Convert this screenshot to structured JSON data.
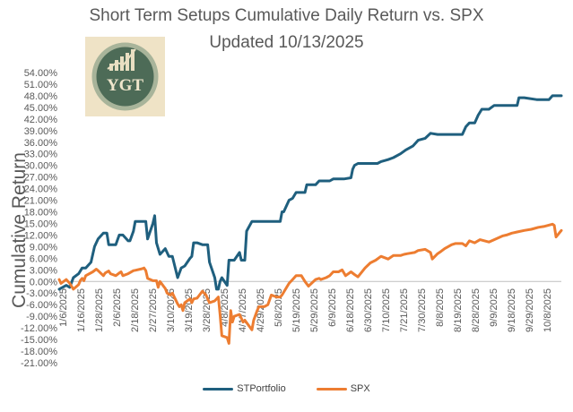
{
  "chart_data": {
    "type": "line",
    "title": "Short Term Setups Cumulative Daily Return vs. SPX",
    "subtitle": "Updated 10/13/2025",
    "xlabel": "",
    "ylabel": "Cumulative Return",
    "logo_text": "YGT",
    "ylim": [
      -21,
      54
    ],
    "y_ticks": [
      "54.00%",
      "51.00%",
      "48.00%",
      "45.00%",
      "42.00%",
      "39.00%",
      "36.00%",
      "33.00%",
      "30.00%",
      "27.00%",
      "24.00%",
      "21.00%",
      "18.00%",
      "15.00%",
      "12.00%",
      "9.00%",
      "6.00%",
      "3.00%",
      "0.00%",
      "-3.00%",
      "-6.00%",
      "-9.00%",
      "-12.00%",
      "-15.00%",
      "-18.00%",
      "-21.00%"
    ],
    "x_ticks": [
      "1/6/2025",
      "1/16/2025",
      "1/28/2025",
      "2/6/2025",
      "2/18/2025",
      "2/27/2025",
      "3/10/2025",
      "3/19/2025",
      "3/28/2025",
      "4/8/2025",
      "4/17/2025",
      "4/29/2025",
      "5/8/2025",
      "5/19/2025",
      "5/29/2025",
      "6/9/2025",
      "6/18/2025",
      "6/30/2025",
      "7/10/2025",
      "7/21/2025",
      "7/30/2025",
      "8/8/2025",
      "8/19/2025",
      "8/28/2025",
      "9/9/2025",
      "9/18/2025",
      "9/29/2025",
      "10/8/2025"
    ],
    "x_start": "2025-01-02",
    "x_end": "2025-10-13",
    "grid": false,
    "legend_position": "bottom",
    "series": [
      {
        "name": "STPortfolio",
        "color": "#1f5f7e",
        "points": [
          [
            "2025-01-02",
            -2
          ],
          [
            "2025-01-06",
            -1
          ],
          [
            "2025-01-08",
            -1.5
          ],
          [
            "2025-01-10",
            1
          ],
          [
            "2025-01-13",
            2
          ],
          [
            "2025-01-15",
            3.5
          ],
          [
            "2025-01-17",
            3.5
          ],
          [
            "2025-01-20",
            5
          ],
          [
            "2025-01-22",
            9
          ],
          [
            "2025-01-24",
            11
          ],
          [
            "2025-01-27",
            12.5
          ],
          [
            "2025-01-29",
            12.5
          ],
          [
            "2025-01-30",
            9.5
          ],
          [
            "2025-02-03",
            9.5
          ],
          [
            "2025-02-05",
            12
          ],
          [
            "2025-02-07",
            12
          ],
          [
            "2025-02-10",
            10.5
          ],
          [
            "2025-02-11",
            10.5
          ],
          [
            "2025-02-13",
            13
          ],
          [
            "2025-02-14",
            15.5
          ],
          [
            "2025-02-18",
            15.5
          ],
          [
            "2025-02-20",
            15.5
          ],
          [
            "2025-02-21",
            11
          ],
          [
            "2025-02-24",
            15
          ],
          [
            "2025-02-25",
            17
          ],
          [
            "2025-02-26",
            10
          ],
          [
            "2025-02-28",
            7
          ],
          [
            "2025-03-03",
            8.5
          ],
          [
            "2025-03-05",
            6.5
          ],
          [
            "2025-03-07",
            6.5
          ],
          [
            "2025-03-10",
            1
          ],
          [
            "2025-03-12",
            3.5
          ],
          [
            "2025-03-14",
            4
          ],
          [
            "2025-03-17",
            6
          ],
          [
            "2025-03-18",
            6.5
          ],
          [
            "2025-03-19",
            10
          ],
          [
            "2025-03-21",
            10
          ],
          [
            "2025-03-24",
            9.5
          ],
          [
            "2025-03-27",
            9.5
          ],
          [
            "2025-03-28",
            5
          ],
          [
            "2025-03-31",
            1
          ],
          [
            "2025-04-01",
            -2
          ],
          [
            "2025-04-02",
            -2
          ],
          [
            "2025-04-03",
            0
          ],
          [
            "2025-04-04",
            1
          ],
          [
            "2025-04-07",
            -1
          ],
          [
            "2025-04-08",
            5.5
          ],
          [
            "2025-04-10",
            5.5
          ],
          [
            "2025-04-11",
            5.5
          ],
          [
            "2025-04-14",
            7.5
          ],
          [
            "2025-04-15",
            5.5
          ],
          [
            "2025-04-17",
            5.5
          ],
          [
            "2025-04-18",
            13
          ],
          [
            "2025-04-21",
            15.5
          ],
          [
            "2025-04-24",
            15.5
          ],
          [
            "2025-05-01",
            15.5
          ],
          [
            "2025-05-07",
            15.5
          ],
          [
            "2025-05-08",
            18
          ],
          [
            "2025-05-09",
            18
          ],
          [
            "2025-05-12",
            21
          ],
          [
            "2025-05-14",
            21.5
          ],
          [
            "2025-05-16",
            23
          ],
          [
            "2025-05-21",
            23
          ],
          [
            "2025-05-22",
            25
          ],
          [
            "2025-05-27",
            25
          ],
          [
            "2025-05-29",
            26
          ],
          [
            "2025-06-04",
            26
          ],
          [
            "2025-06-06",
            26.5
          ],
          [
            "2025-06-12",
            26.5
          ],
          [
            "2025-06-16",
            26.8
          ],
          [
            "2025-06-17",
            29
          ],
          [
            "2025-06-18",
            30
          ],
          [
            "2025-06-20",
            30.5
          ],
          [
            "2025-06-27",
            30.5
          ],
          [
            "2025-07-01",
            30.5
          ],
          [
            "2025-07-03",
            31
          ],
          [
            "2025-07-07",
            31.5
          ],
          [
            "2025-07-10",
            32
          ],
          [
            "2025-07-14",
            33
          ],
          [
            "2025-07-17",
            34
          ],
          [
            "2025-07-21",
            35
          ],
          [
            "2025-07-24",
            36.5
          ],
          [
            "2025-07-28",
            37
          ],
          [
            "2025-07-31",
            38.3
          ],
          [
            "2025-08-04",
            38
          ],
          [
            "2025-08-11",
            38
          ],
          [
            "2025-08-18",
            38
          ],
          [
            "2025-08-20",
            40
          ],
          [
            "2025-08-22",
            41
          ],
          [
            "2025-08-25",
            41
          ],
          [
            "2025-08-27",
            43
          ],
          [
            "2025-08-29",
            44.5
          ],
          [
            "2025-09-02",
            44.5
          ],
          [
            "2025-09-05",
            45.5
          ],
          [
            "2025-09-10",
            45.5
          ],
          [
            "2025-09-15",
            45.5
          ],
          [
            "2025-09-18",
            45.5
          ],
          [
            "2025-09-19",
            47.5
          ],
          [
            "2025-09-22",
            47.5
          ],
          [
            "2025-09-29",
            47
          ],
          [
            "2025-10-02",
            47
          ],
          [
            "2025-10-06",
            47
          ],
          [
            "2025-10-08",
            48
          ],
          [
            "2025-10-13",
            48
          ]
        ]
      },
      {
        "name": "SPX",
        "color": "#ed7d31",
        "points": [
          [
            "2025-01-02",
            0.5
          ],
          [
            "2025-01-03",
            -0.5
          ],
          [
            "2025-01-06",
            0.5
          ],
          [
            "2025-01-08",
            -0.5
          ],
          [
            "2025-01-10",
            -2
          ],
          [
            "2025-01-13",
            -0.8
          ],
          [
            "2025-01-14",
            0.3
          ],
          [
            "2025-01-15",
            0.8
          ],
          [
            "2025-01-16",
            0.2
          ],
          [
            "2025-01-17",
            1.5
          ],
          [
            "2025-01-21",
            2.5
          ],
          [
            "2025-01-23",
            3.2
          ],
          [
            "2025-01-24",
            2.8
          ],
          [
            "2025-01-27",
            1.5
          ],
          [
            "2025-01-28",
            2.2
          ],
          [
            "2025-01-30",
            2.7
          ],
          [
            "2025-01-31",
            2
          ],
          [
            "2025-02-03",
            1.5
          ],
          [
            "2025-02-05",
            2.2
          ],
          [
            "2025-02-06",
            2.5
          ],
          [
            "2025-02-07",
            1.5
          ],
          [
            "2025-02-10",
            2
          ],
          [
            "2025-02-13",
            2.8
          ],
          [
            "2025-02-14",
            2.9
          ],
          [
            "2025-02-18",
            3.3
          ],
          [
            "2025-02-19",
            3.5
          ],
          [
            "2025-02-20",
            2.8
          ],
          [
            "2025-02-21",
            0.8
          ],
          [
            "2025-02-24",
            0.2
          ],
          [
            "2025-02-26",
            0.2
          ],
          [
            "2025-02-27",
            -1.5
          ],
          [
            "2025-02-28",
            0
          ],
          [
            "2025-03-03",
            -1.8
          ],
          [
            "2025-03-04",
            -3
          ],
          [
            "2025-03-06",
            -3.5
          ],
          [
            "2025-03-07",
            -3
          ],
          [
            "2025-03-10",
            -5.8
          ],
          [
            "2025-03-11",
            -6.5
          ],
          [
            "2025-03-12",
            -6
          ],
          [
            "2025-03-13",
            -7.5
          ],
          [
            "2025-03-14",
            -5.5
          ],
          [
            "2025-03-17",
            -4.5
          ],
          [
            "2025-03-18",
            -5.5
          ],
          [
            "2025-03-19",
            -4.5
          ],
          [
            "2025-03-21",
            -4.3
          ],
          [
            "2025-03-24",
            -2.5
          ],
          [
            "2025-03-26",
            -3.5
          ],
          [
            "2025-03-28",
            -5.5
          ],
          [
            "2025-03-31",
            -5
          ],
          [
            "2025-04-02",
            -4
          ],
          [
            "2025-04-03",
            -8.5
          ],
          [
            "2025-04-04",
            -14
          ],
          [
            "2025-04-07",
            -14.5
          ],
          [
            "2025-04-08",
            -16
          ],
          [
            "2025-04-09",
            -7.5
          ],
          [
            "2025-04-10",
            -10.5
          ],
          [
            "2025-04-11",
            -9
          ],
          [
            "2025-04-14",
            -8.5
          ],
          [
            "2025-04-16",
            -10.5
          ],
          [
            "2025-04-17",
            -10
          ],
          [
            "2025-04-21",
            -12.5
          ],
          [
            "2025-04-22",
            -10
          ],
          [
            "2025-04-24",
            -7.5
          ],
          [
            "2025-04-25",
            -6.5
          ],
          [
            "2025-04-28",
            -6.5
          ],
          [
            "2025-04-30",
            -6
          ],
          [
            "2025-05-02",
            -3.5
          ],
          [
            "2025-05-05",
            -4
          ],
          [
            "2025-05-07",
            -4
          ],
          [
            "2025-05-08",
            -3.5
          ],
          [
            "2025-05-12",
            -0.5
          ],
          [
            "2025-05-14",
            0.5
          ],
          [
            "2025-05-16",
            1.5
          ],
          [
            "2025-05-19",
            1.5
          ],
          [
            "2025-05-21",
            0
          ],
          [
            "2025-05-23",
            -1.2
          ],
          [
            "2025-05-27",
            0.5
          ],
          [
            "2025-05-29",
            0.8
          ],
          [
            "2025-05-30",
            0.5
          ],
          [
            "2025-06-02",
            1
          ],
          [
            "2025-06-04",
            1.5
          ],
          [
            "2025-06-06",
            2.5
          ],
          [
            "2025-06-09",
            2.5
          ],
          [
            "2025-06-11",
            3
          ],
          [
            "2025-06-13",
            1.5
          ],
          [
            "2025-06-16",
            2.5
          ],
          [
            "2025-06-18",
            1.8
          ],
          [
            "2025-06-20",
            1.2
          ],
          [
            "2025-06-24",
            3.5
          ],
          [
            "2025-06-27",
            4.8
          ],
          [
            "2025-06-30",
            5.5
          ],
          [
            "2025-07-03",
            6.5
          ],
          [
            "2025-07-07",
            5.8
          ],
          [
            "2025-07-10",
            6.7
          ],
          [
            "2025-07-14",
            6.7
          ],
          [
            "2025-07-16",
            7
          ],
          [
            "2025-07-18",
            7.2
          ],
          [
            "2025-07-22",
            7.5
          ],
          [
            "2025-07-24",
            8
          ],
          [
            "2025-07-28",
            8.3
          ],
          [
            "2025-07-31",
            7.5
          ],
          [
            "2025-08-01",
            5.8
          ],
          [
            "2025-08-04",
            7.2
          ],
          [
            "2025-08-06",
            7.8
          ],
          [
            "2025-08-08",
            8.5
          ],
          [
            "2025-08-12",
            9.5
          ],
          [
            "2025-08-14",
            9.8
          ],
          [
            "2025-08-18",
            9.8
          ],
          [
            "2025-08-20",
            9.2
          ],
          [
            "2025-08-22",
            10.5
          ],
          [
            "2025-08-25",
            10
          ],
          [
            "2025-08-28",
            10.8
          ],
          [
            "2025-09-02",
            10.2
          ],
          [
            "2025-09-05",
            10.8
          ],
          [
            "2025-09-10",
            11.8
          ],
          [
            "2025-09-12",
            12
          ],
          [
            "2025-09-15",
            12.5
          ],
          [
            "2025-09-18",
            12.8
          ],
          [
            "2025-09-22",
            13.2
          ],
          [
            "2025-09-26",
            13.5
          ],
          [
            "2025-09-30",
            14
          ],
          [
            "2025-10-03",
            14.2
          ],
          [
            "2025-10-08",
            14.8
          ],
          [
            "2025-10-09",
            14.5
          ],
          [
            "2025-10-10",
            11.5
          ],
          [
            "2025-10-13",
            13.2
          ]
        ]
      }
    ]
  }
}
